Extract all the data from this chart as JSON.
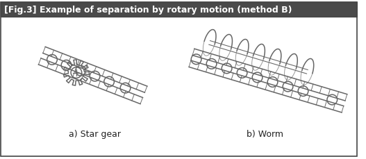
{
  "title": "[Fig.3] Example of separation by rotary motion (method B)",
  "title_bg": "#4a4a4a",
  "title_color": "#ffffff",
  "label_a": "a) Star gear",
  "label_b": "b) Worm",
  "bg_color": "#ffffff",
  "border_color": "#444444",
  "draw_color": "#666666",
  "line_width": 1.1
}
